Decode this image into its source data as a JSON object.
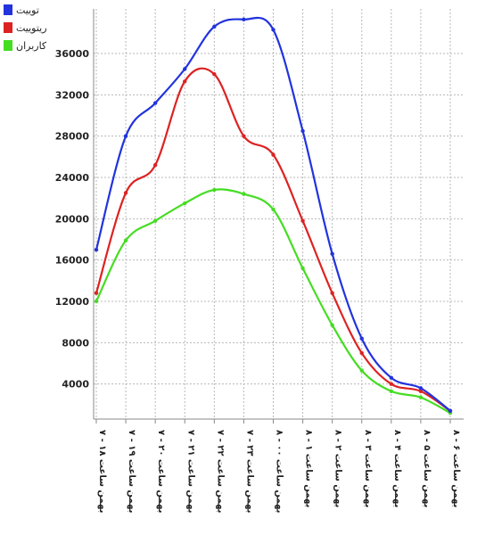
{
  "chart_data": {
    "type": "line",
    "title": "",
    "xlabel": "",
    "ylabel": "",
    "ylim": [
      0,
      40000
    ],
    "y_ticks": [
      4000,
      8000,
      12000,
      16000,
      20000,
      24000,
      28000,
      32000,
      36000
    ],
    "y_tick_labels": [
      "4000",
      "8000",
      "12000",
      "16000",
      "20000",
      "24000",
      "28000",
      "32000",
      "36000"
    ],
    "grid": true,
    "legend_position": "top-left",
    "categories": [
      "۷ - بهمن ساعت ۱۸",
      "۷ - بهمن ساعت ۱۹",
      "۷ - بهمن ساعت ۲۰",
      "۷ - بهمن ساعت ۲۱",
      "۷ - بهمن ساعت ۲۲",
      "۷ - بهمن ساعت ۲۳",
      "۸ - بهمن ساعت ۰۰",
      "۸ - بهمن ساعت ۱",
      "۸ - بهمن ساعت ۲",
      "۸ - بهمن ساعت ۳",
      "۸ - بهمن ساعت ۴",
      "۸ - بهمن ساعت ۵",
      "۸ - بهمن ساعت ۶"
    ],
    "series": [
      {
        "name": "توییت",
        "color": "#2233dd",
        "values": [
          17000,
          28000,
          31200,
          34500,
          38600,
          39300,
          38300,
          28500,
          16600,
          8400,
          4600,
          3600,
          1400
        ]
      },
      {
        "name": "ریتوییت",
        "color": "#dd2222",
        "values": [
          12800,
          22500,
          25200,
          33300,
          34000,
          28000,
          26200,
          19800,
          12800,
          7000,
          4000,
          3300,
          1400
        ]
      },
      {
        "name": "کاربران",
        "color": "#44dd22",
        "values": [
          12000,
          17900,
          19800,
          21500,
          22800,
          22400,
          20900,
          15200,
          9700,
          5300,
          3300,
          2700,
          1200
        ]
      }
    ]
  }
}
